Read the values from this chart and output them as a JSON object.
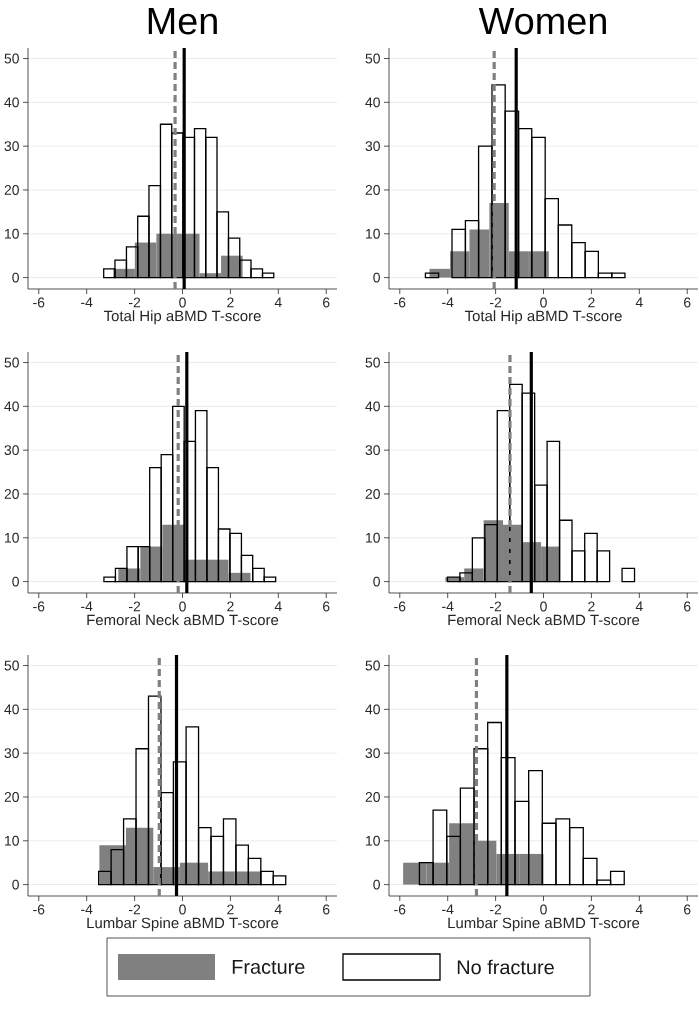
{
  "chart_data": [
    {
      "type": "histogram",
      "title": "Men",
      "bins": [
        -3.29,
        -2.82,
        -2.34,
        -1.87,
        -1.4,
        -0.92,
        -0.45,
        0.02,
        0.5,
        0.97,
        1.44,
        1.92,
        2.39,
        2.86,
        3.34,
        3.81
      ],
      "xlabel": "Total Hip aBMD T-score",
      "xlim": [
        -6.45,
        6.45
      ],
      "ylim": [
        -2.6,
        52.4
      ],
      "xticks": [
        -6,
        -4,
        -2,
        0,
        2,
        4,
        6
      ],
      "yticks": [
        0,
        10,
        20,
        30,
        40,
        50
      ],
      "grid": "y",
      "series": [
        {
          "color": "#808080",
          "bins": [
            -2.89,
            -1.99,
            -1.09,
            -0.19,
            0.71,
            1.61,
            2.51
          ],
          "values": [
            2,
            8,
            10,
            10,
            1,
            5
          ]
        },
        {
          "color": "#000000",
          "values": [
            2,
            4,
            7,
            14,
            21,
            35,
            33,
            32,
            34,
            32,
            15,
            9,
            4,
            2,
            1
          ]
        }
      ],
      "ref_lines": [
        {
          "axis": "x",
          "value": -0.31,
          "color": "#808080",
          "line_style": "dashed"
        },
        {
          "axis": "x",
          "value": 0.07,
          "color": "#000000",
          "line_style": "solid"
        }
      ]
    },
    {
      "type": "histogram",
      "title": "Women",
      "bins": [
        -4.93,
        -4.38,
        -3.82,
        -3.26,
        -2.71,
        -2.15,
        -1.6,
        -1.04,
        -0.49,
        0.07,
        0.62,
        1.18,
        1.74,
        2.29,
        2.85,
        3.4
      ],
      "xlabel": "Total Hip aBMD T-score",
      "xlim": [
        -6.45,
        6.45
      ],
      "ylim": [
        -2.6,
        52.4
      ],
      "xticks": [
        -6,
        -4,
        -2,
        0,
        2,
        4,
        6
      ],
      "yticks": [
        0,
        10,
        20,
        30,
        40,
        50
      ],
      "grid": "y",
      "series": [
        {
          "color": "#808080",
          "bins": [
            -4.76,
            -3.9,
            -3.09,
            -2.26,
            -1.45,
            -0.61,
            0.22
          ],
          "values": [
            2,
            6,
            11,
            17,
            6,
            6
          ]
        },
        {
          "color": "#000000",
          "values": [
            1,
            0,
            11,
            13,
            30,
            44,
            38,
            34,
            32,
            18,
            12,
            8,
            6,
            1,
            1
          ]
        }
      ],
      "ref_lines": [
        {
          "axis": "x",
          "value": -2.06,
          "color": "#808080",
          "line_style": "dashed"
        },
        {
          "axis": "x",
          "value": -1.14,
          "color": "#000000",
          "line_style": "solid"
        }
      ]
    },
    {
      "type": "histogram",
      "bins": [
        -3.28,
        -2.8,
        -2.32,
        -1.85,
        -1.37,
        -0.89,
        -0.41,
        0.07,
        0.54,
        1.02,
        1.5,
        1.98,
        2.46,
        2.93,
        3.41,
        3.89
      ],
      "xlabel": "Femoral Neck aBMD T-score",
      "xlim": [
        -6.45,
        6.45
      ],
      "ylim": [
        -2.6,
        52.4
      ],
      "xticks": [
        -6,
        -4,
        -2,
        0,
        2,
        4,
        6
      ],
      "yticks": [
        0,
        10,
        20,
        30,
        40,
        50
      ],
      "grid": "y",
      "series": [
        {
          "color": "#808080",
          "bins": [
            -2.68,
            -1.76,
            -0.84,
            0.08,
            1.0,
            1.92,
            2.84
          ],
          "values": [
            3,
            8,
            13,
            5,
            5,
            2
          ]
        },
        {
          "color": "#000000",
          "values": [
            1,
            3,
            8,
            8,
            26,
            29,
            40,
            32,
            39,
            26,
            12,
            11,
            6,
            3,
            1
          ]
        }
      ],
      "ref_lines": [
        {
          "axis": "x",
          "value": -0.18,
          "color": "#808080",
          "line_style": "dashed"
        },
        {
          "axis": "x",
          "value": 0.18,
          "color": "#000000",
          "line_style": "solid"
        }
      ]
    },
    {
      "type": "histogram",
      "bins": [
        -4.01,
        -3.49,
        -2.97,
        -2.45,
        -1.93,
        -1.41,
        -0.89,
        -0.37,
        0.15,
        0.67,
        1.19,
        1.72,
        2.24,
        2.76,
        3.28,
        3.8
      ],
      "xlabel": "Femoral Neck aBMD T-score",
      "xlim": [
        -6.45,
        6.45
      ],
      "ylim": [
        -2.6,
        52.4
      ],
      "xticks": [
        -6,
        -4,
        -2,
        0,
        2,
        4,
        6
      ],
      "yticks": [
        0,
        10,
        20,
        30,
        40,
        50
      ],
      "grid": "y",
      "series": [
        {
          "color": "#808080",
          "bins": [
            -4.1,
            -3.31,
            -2.5,
            -1.69,
            -0.9,
            -0.1,
            0.69
          ],
          "values": [
            1,
            3,
            14,
            13,
            9,
            8
          ]
        },
        {
          "color": "#000000",
          "values": [
            1,
            2,
            10,
            13,
            39,
            45,
            43,
            22,
            32,
            14,
            7,
            11,
            7,
            0,
            3
          ]
        }
      ],
      "ref_lines": [
        {
          "axis": "x",
          "value": -1.4,
          "color": "#808080",
          "line_style": "dashed"
        },
        {
          "axis": "x",
          "value": -0.51,
          "color": "#000000",
          "line_style": "solid"
        }
      ]
    },
    {
      "type": "histogram",
      "bins": [
        -3.5,
        -2.98,
        -2.46,
        -1.94,
        -1.42,
        -0.9,
        -0.38,
        0.15,
        0.67,
        1.19,
        1.71,
        2.23,
        2.75,
        3.27,
        3.79,
        4.31
      ],
      "xlabel": "Lumbar Spine aBMD T-score",
      "xlim": [
        -6.45,
        6.45
      ],
      "ylim": [
        -2.6,
        52.4
      ],
      "xticks": [
        -6,
        -4,
        -2,
        0,
        2,
        4,
        6
      ],
      "yticks": [
        0,
        10,
        20,
        30,
        40,
        50
      ],
      "grid": "y",
      "series": [
        {
          "color": "#808080",
          "bins": [
            -3.47,
            -2.36,
            -1.22,
            -0.11,
            1.07,
            2.18,
            3.29
          ],
          "values": [
            9,
            13,
            4,
            5,
            3,
            3
          ]
        },
        {
          "color": "#000000",
          "values": [
            3,
            8,
            15,
            31,
            43,
            21,
            28,
            36,
            13,
            11,
            15,
            9,
            6,
            3,
            2
          ]
        }
      ],
      "ref_lines": [
        {
          "axis": "x",
          "value": -0.97,
          "color": "#808080",
          "line_style": "dashed"
        },
        {
          "axis": "x",
          "value": -0.25,
          "color": "#000000",
          "line_style": "solid"
        }
      ]
    },
    {
      "type": "histogram",
      "bins": [
        -5.18,
        -4.61,
        -4.04,
        -3.47,
        -2.9,
        -2.33,
        -1.76,
        -1.19,
        -0.62,
        -0.05,
        0.52,
        1.09,
        1.66,
        2.23,
        2.8,
        3.37
      ],
      "xlabel": "Lumbar Spine aBMD T-score",
      "xlim": [
        -6.45,
        6.45
      ],
      "ylim": [
        -2.6,
        52.4
      ],
      "xticks": [
        -6,
        -4,
        -2,
        0,
        2,
        4,
        6
      ],
      "yticks": [
        0,
        10,
        20,
        30,
        40,
        50
      ],
      "grid": "y",
      "legend": "bottom",
      "series": [
        {
          "name": "Fracture",
          "color": "#808080",
          "bins": [
            -5.86,
            -4.89,
            -3.94,
            -2.94,
            -1.97,
            -0.99,
            0.0
          ],
          "values": [
            5,
            5,
            14,
            10,
            7,
            7
          ]
        },
        {
          "name": "No fracture",
          "color": "#000000",
          "values": [
            5,
            17,
            11,
            22,
            31,
            37,
            29,
            19,
            26,
            14,
            15,
            13,
            6,
            1,
            3
          ]
        }
      ],
      "ref_lines": [
        {
          "axis": "x",
          "value": -2.8,
          "color": "#808080",
          "line_style": "dashed"
        },
        {
          "axis": "x",
          "value": -1.53,
          "color": "#000000",
          "line_style": "solid"
        }
      ]
    }
  ]
}
